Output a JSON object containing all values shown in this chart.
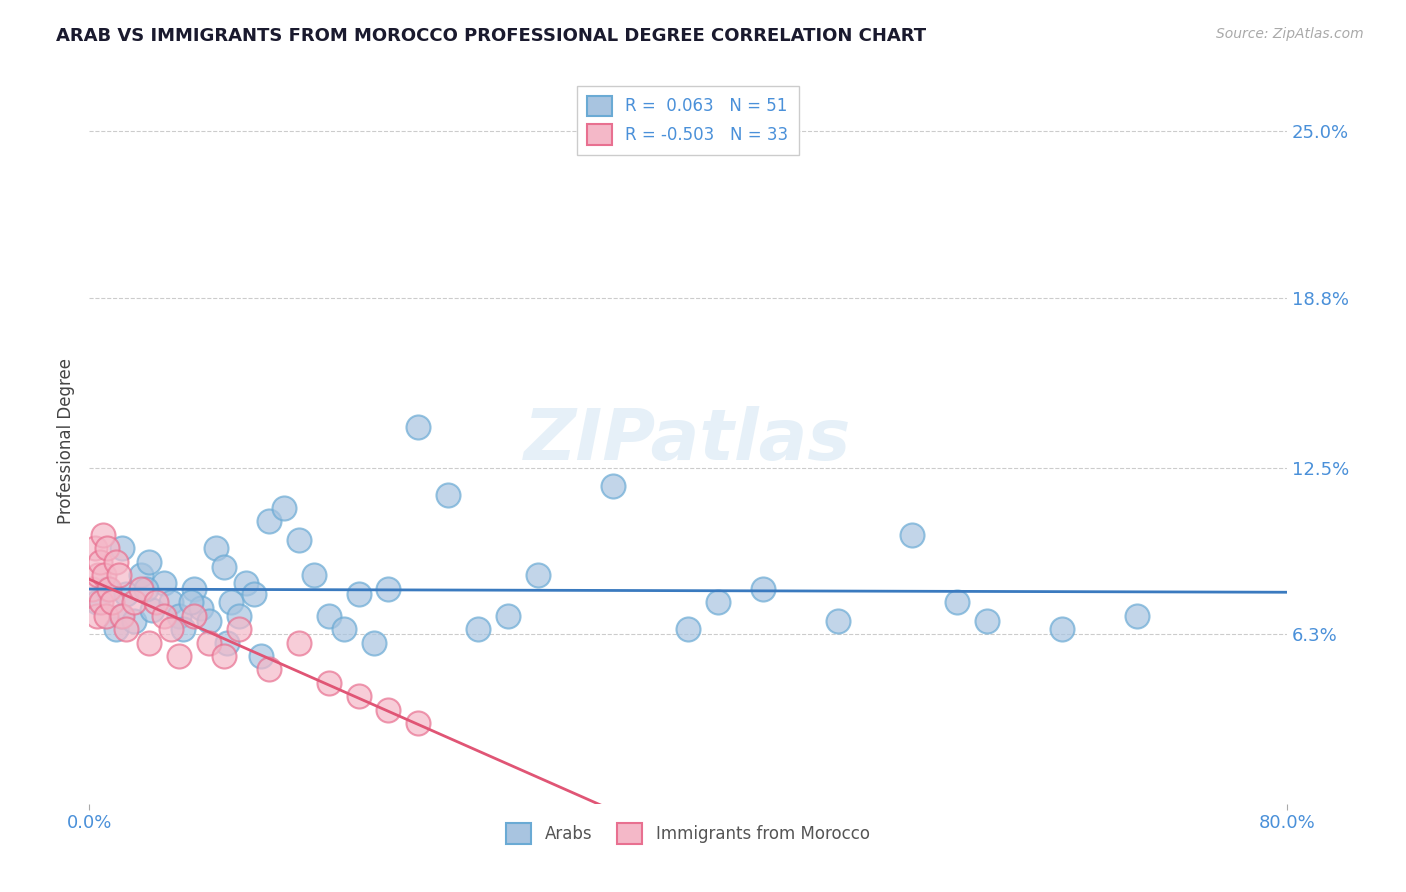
{
  "title": "ARAB VS IMMIGRANTS FROM MOROCCO PROFESSIONAL DEGREE CORRELATION CHART",
  "source": "Source: ZipAtlas.com",
  "xlabel_label": "",
  "ylabel_label": "Professional Degree",
  "x_tick_labels": [
    "0.0%",
    "80.0%"
  ],
  "x_tick_positions": [
    0.0,
    80.0
  ],
  "y_tick_labels": [
    "6.3%",
    "12.5%",
    "18.8%",
    "25.0%"
  ],
  "y_tick_positions": [
    6.3,
    12.5,
    18.8,
    25.0
  ],
  "xlim": [
    0.0,
    80.0
  ],
  "ylim": [
    0.0,
    27.0
  ],
  "background_color": "#ffffff",
  "plot_bg_color": "#ffffff",
  "grid_color": "#cccccc",
  "series": [
    {
      "name": "Arabs",
      "R": 0.063,
      "N": 51,
      "color": "#a8c4e0",
      "line_color": "#3a7abf",
      "marker_edge_color": "#6aaad4",
      "x": [
        0.5,
        1.2,
        1.8,
        2.1,
        2.5,
        3.0,
        3.5,
        4.0,
        4.2,
        5.0,
        5.5,
        6.0,
        6.3,
        7.0,
        7.5,
        8.0,
        8.5,
        9.0,
        9.5,
        10.0,
        10.5,
        11.0,
        12.0,
        13.0,
        14.0,
        15.0,
        16.0,
        17.0,
        18.0,
        20.0,
        22.0,
        24.0,
        26.0,
        28.0,
        30.0,
        35.0,
        40.0,
        42.0,
        45.0,
        50.0,
        55.0,
        58.0,
        60.0,
        65.0,
        70.0,
        2.2,
        3.8,
        6.8,
        9.2,
        11.5,
        19.0
      ],
      "y": [
        7.5,
        8.0,
        6.5,
        7.0,
        7.8,
        6.8,
        8.5,
        9.0,
        7.2,
        8.2,
        7.5,
        7.0,
        6.5,
        8.0,
        7.3,
        6.8,
        9.5,
        8.8,
        7.5,
        7.0,
        8.2,
        7.8,
        10.5,
        11.0,
        9.8,
        8.5,
        7.0,
        6.5,
        7.8,
        8.0,
        14.0,
        11.5,
        6.5,
        7.0,
        8.5,
        11.8,
        6.5,
        7.5,
        8.0,
        6.8,
        10.0,
        7.5,
        6.8,
        6.5,
        7.0,
        9.5,
        8.0,
        7.5,
        6.0,
        5.5,
        6.0
      ]
    },
    {
      "name": "Immigrants from Morocco",
      "R": -0.503,
      "N": 33,
      "color": "#f4b8c8",
      "line_color": "#e05575",
      "marker_edge_color": "#e87090",
      "x": [
        0.2,
        0.4,
        0.5,
        0.6,
        0.7,
        0.8,
        0.9,
        1.0,
        1.1,
        1.2,
        1.3,
        1.5,
        1.8,
        2.0,
        2.2,
        2.5,
        3.0,
        3.5,
        4.0,
        4.5,
        5.0,
        5.5,
        6.0,
        7.0,
        8.0,
        9.0,
        10.0,
        12.0,
        14.0,
        16.0,
        18.0,
        20.0,
        22.0
      ],
      "y": [
        8.0,
        9.5,
        7.0,
        8.5,
        9.0,
        7.5,
        10.0,
        8.5,
        7.0,
        9.5,
        8.0,
        7.5,
        9.0,
        8.5,
        7.0,
        6.5,
        7.5,
        8.0,
        6.0,
        7.5,
        7.0,
        6.5,
        5.5,
        7.0,
        6.0,
        5.5,
        6.5,
        5.0,
        6.0,
        4.5,
        4.0,
        3.5,
        3.0
      ]
    }
  ],
  "legend": {
    "arab_R": "R =  0.063",
    "arab_N": "N = 51",
    "morocco_R": "R = -0.503",
    "morocco_N": "N = 33"
  },
  "watermark": "ZIPatlas",
  "title_color": "#1a1a2e",
  "axis_label_color": "#444444",
  "tick_color": "#4a90d9",
  "source_color": "#888888"
}
